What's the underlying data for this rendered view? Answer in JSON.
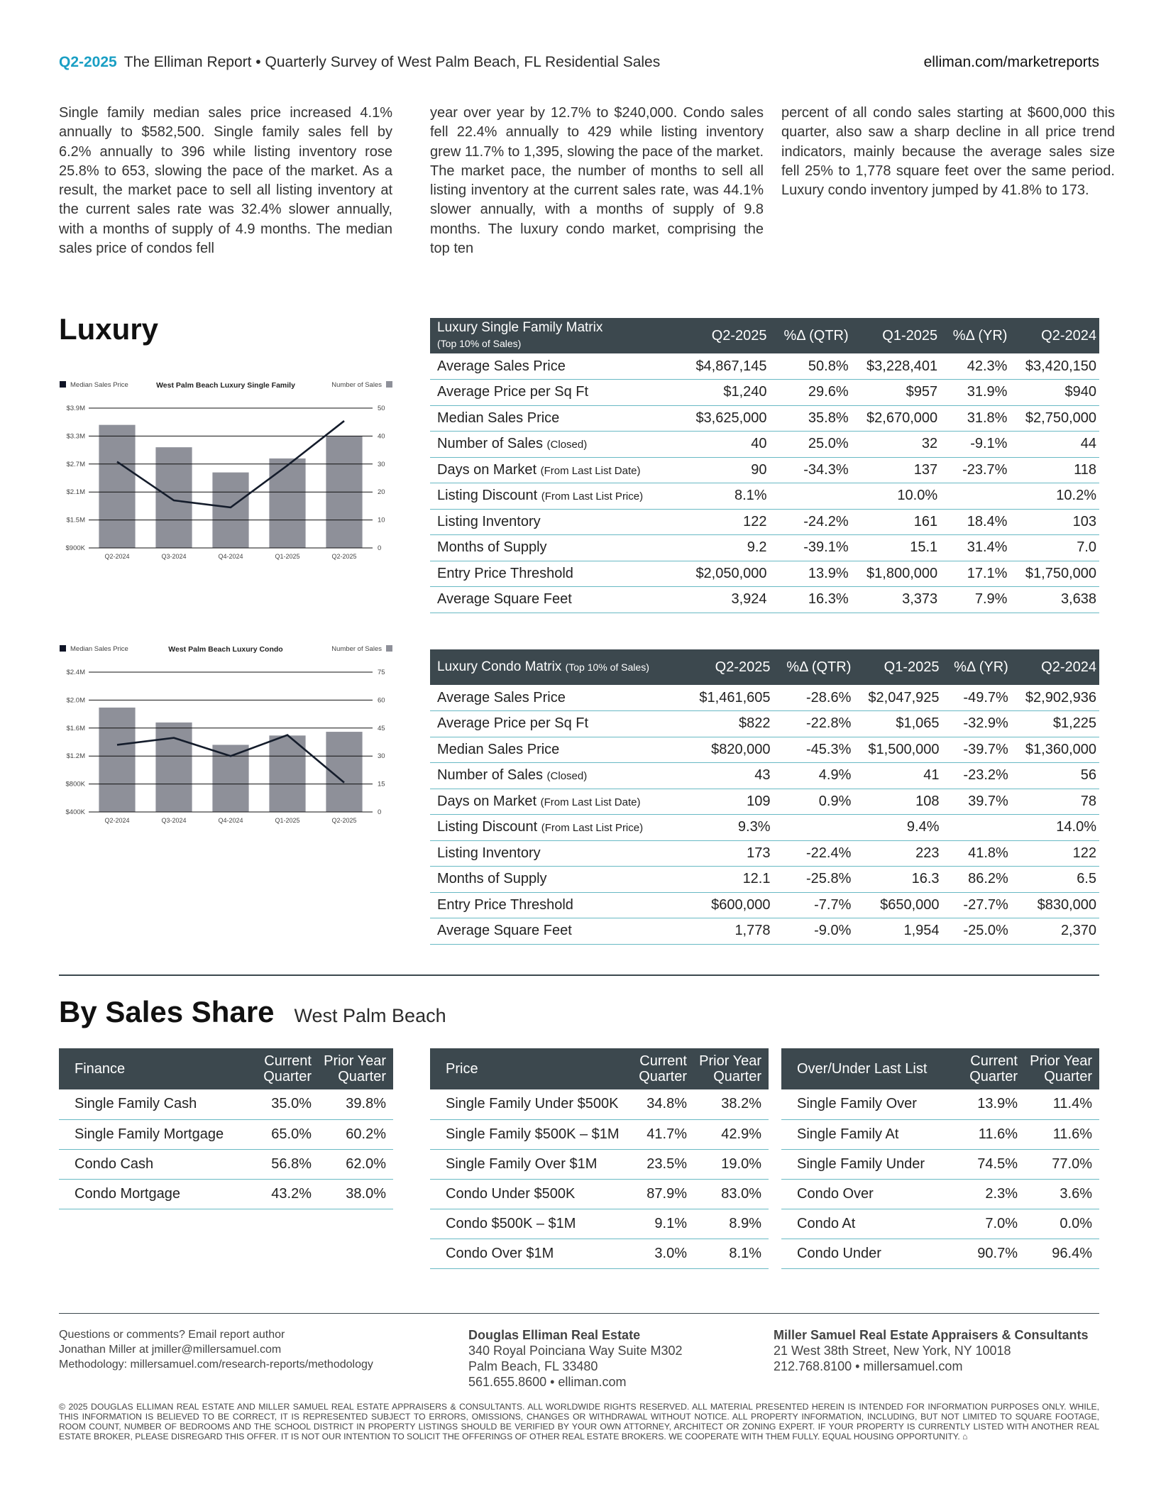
{
  "header": {
    "quarter": "Q2-2025",
    "title": "The Elliman Report • Quarterly Survey of West Palm Beach, FL Residential Sales",
    "url": "elliman.com/marketreports"
  },
  "intro": [
    "Single family median sales price increased 4.1% annually to $582,500. Single family sales fell by 6.2% annually to 396 while listing inventory rose 25.8% to 653, slowing the pace of the market. As a result, the market pace to sell all listing inventory at the current sales rate was 32.4% slower annually, with a months of supply of 4.9 months. The median sales price of condos fell",
    "year over year by 12.7% to $240,000. Condo sales fell 22.4% annually to 429 while listing inventory grew 11.7% to 1,395, slowing the pace of the market. The market pace, the number of months to sell all listing inventory at the current sales rate, was 44.1% slower annually, with a months of supply of 9.8 months. The luxury condo market, comprising the top ten",
    "percent of all condo sales starting at $600,000 this quarter, also saw a sharp decline in all price trend indicators, mainly because the average sales size fell 25% to 1,778 square feet over the same period. Luxury condo inventory jumped by 41.8% to 173."
  ],
  "luxury_heading": "Luxury",
  "matrix_cols": [
    "Q2-2025",
    "%Δ (QTR)",
    "Q1-2025",
    "%Δ (YR)",
    "Q2-2024"
  ],
  "sf_matrix": {
    "title": "Luxury Single Family Matrix",
    "subtitle": "(Top 10% of Sales)",
    "rows": [
      [
        "Average Sales Price",
        "",
        "$4,867,145",
        "50.8%",
        "$3,228,401",
        "42.3%",
        "$3,420,150"
      ],
      [
        "Average Price per Sq Ft",
        "",
        "$1,240",
        "29.6%",
        "$957",
        "31.9%",
        "$940"
      ],
      [
        "Median Sales Price",
        "",
        "$3,625,000",
        "35.8%",
        "$2,670,000",
        "31.8%",
        "$2,750,000"
      ],
      [
        "Number of Sales",
        "(Closed)",
        "40",
        "25.0%",
        "32",
        "-9.1%",
        "44"
      ],
      [
        "Days on Market",
        "(From Last List Date)",
        "90",
        "-34.3%",
        "137",
        "-23.7%",
        "118"
      ],
      [
        "Listing Discount",
        "(From Last List Price)",
        "8.1%",
        "",
        "10.0%",
        "",
        "10.2%"
      ],
      [
        "Listing Inventory",
        "",
        "122",
        "-24.2%",
        "161",
        "18.4%",
        "103"
      ],
      [
        "Months of Supply",
        "",
        "9.2",
        "-39.1%",
        "15.1",
        "31.4%",
        "7.0"
      ],
      [
        "Entry Price Threshold",
        "",
        "$2,050,000",
        "13.9%",
        "$1,800,000",
        "17.1%",
        "$1,750,000"
      ],
      [
        "Average Square Feet",
        "",
        "3,924",
        "16.3%",
        "3,373",
        "7.9%",
        "3,638"
      ]
    ]
  },
  "condo_matrix": {
    "title": "Luxury Condo Matrix",
    "subtitle": "(Top 10% of Sales)",
    "rows": [
      [
        "Average Sales Price",
        "",
        "$1,461,605",
        "-28.6%",
        "$2,047,925",
        "-49.7%",
        "$2,902,936"
      ],
      [
        "Average Price per Sq Ft",
        "",
        "$822",
        "-22.8%",
        "$1,065",
        "-32.9%",
        "$1,225"
      ],
      [
        "Median Sales Price",
        "",
        "$820,000",
        "-45.3%",
        "$1,500,000",
        "-39.7%",
        "$1,360,000"
      ],
      [
        "Number of Sales",
        "(Closed)",
        "43",
        "4.9%",
        "41",
        "-23.2%",
        "56"
      ],
      [
        "Days on Market",
        "(From Last List Date)",
        "109",
        "0.9%",
        "108",
        "39.7%",
        "78"
      ],
      [
        "Listing Discount",
        "(From Last List Price)",
        "9.3%",
        "",
        "9.4%",
        "",
        "14.0%"
      ],
      [
        "Listing Inventory",
        "",
        "173",
        "-22.4%",
        "223",
        "41.8%",
        "122"
      ],
      [
        "Months of Supply",
        "",
        "12.1",
        "-25.8%",
        "16.3",
        "86.2%",
        "6.5"
      ],
      [
        "Entry Price Threshold",
        "",
        "$600,000",
        "-7.7%",
        "$650,000",
        "-27.7%",
        "$830,000"
      ],
      [
        "Average Square Feet",
        "",
        "1,778",
        "-9.0%",
        "1,954",
        "-25.0%",
        "2,370"
      ]
    ]
  },
  "chart_data": [
    {
      "type": "bar+line",
      "title": "West Palm Beach Luxury Single Family",
      "legend_left": "Median Sales Price",
      "legend_right": "Number of Sales",
      "categories": [
        "Q2-2024",
        "Q3-2024",
        "Q4-2024",
        "Q1-2025",
        "Q2-2025"
      ],
      "left_ticks": [
        "$900K",
        "$1.5M",
        "$2.1M",
        "$2.7M",
        "$3.3M",
        "$3.9M"
      ],
      "right_ticks": [
        "0",
        "10",
        "20",
        "30",
        "40",
        "50"
      ],
      "ylim_left": [
        900000,
        3900000
      ],
      "ylim_right": [
        0,
        50
      ],
      "series": [
        {
          "name": "Number of Sales",
          "kind": "bar",
          "axis": "right",
          "values": [
            44,
            36,
            27,
            32,
            40
          ]
        },
        {
          "name": "Median Sales Price",
          "kind": "line",
          "axis": "left",
          "values": [
            2750000,
            1920000,
            1770000,
            2670000,
            3625000
          ]
        }
      ],
      "colors": {
        "bar": "#8e9099",
        "line": "#141c2b"
      }
    },
    {
      "type": "bar+line",
      "title": "West Palm Beach Luxury Condo",
      "legend_left": "Median Sales Price",
      "legend_right": "Number of Sales",
      "categories": [
        "Q2-2024",
        "Q3-2024",
        "Q4-2024",
        "Q1-2025",
        "Q2-2025"
      ],
      "left_ticks": [
        "$400K",
        "$800K",
        "$1.2M",
        "$1.6M",
        "$2.0M",
        "$2.4M"
      ],
      "right_ticks": [
        "0",
        "15",
        "30",
        "45",
        "60",
        "75"
      ],
      "ylim_left": [
        400000,
        2400000
      ],
      "ylim_right": [
        0,
        75
      ],
      "series": [
        {
          "name": "Number of Sales",
          "kind": "bar",
          "axis": "right",
          "values": [
            56,
            48,
            36,
            41,
            43
          ]
        },
        {
          "name": "Median Sales Price",
          "kind": "line",
          "axis": "left",
          "values": [
            1360000,
            1460000,
            1200000,
            1500000,
            820000
          ]
        }
      ],
      "colors": {
        "bar": "#8e9099",
        "line": "#141c2b"
      }
    }
  ],
  "share": {
    "heading": "By Sales Share",
    "subheading": "West Palm Beach",
    "cols": [
      "Current Quarter",
      "Prior Year Quarter"
    ],
    "tables": [
      {
        "title": "Finance",
        "rows": [
          [
            "Single Family Cash",
            "35.0%",
            "39.8%"
          ],
          [
            "Single Family Mortgage",
            "65.0%",
            "60.2%"
          ],
          [
            "Condo Cash",
            "56.8%",
            "62.0%"
          ],
          [
            "Condo Mortgage",
            "43.2%",
            "38.0%"
          ]
        ]
      },
      {
        "title": "Price",
        "rows": [
          [
            "Single Family Under $500K",
            "34.8%",
            "38.2%"
          ],
          [
            "Single Family $500K – $1M",
            "41.7%",
            "42.9%"
          ],
          [
            "Single Family Over $1M",
            "23.5%",
            "19.0%"
          ],
          [
            "Condo Under $500K",
            "87.9%",
            "83.0%"
          ],
          [
            "Condo $500K – $1M",
            "9.1%",
            "8.9%"
          ],
          [
            "Condo Over $1M",
            "3.0%",
            "8.1%"
          ]
        ]
      },
      {
        "title": "Over/Under Last List",
        "rows": [
          [
            "Single Family Over",
            "13.9%",
            "11.4%"
          ],
          [
            "Single Family At",
            "11.6%",
            "11.6%"
          ],
          [
            "Single Family Under",
            "74.5%",
            "77.0%"
          ],
          [
            "Condo Over",
            "2.3%",
            "3.6%"
          ],
          [
            "Condo At",
            "7.0%",
            "0.0%"
          ],
          [
            "Condo Under",
            "90.7%",
            "96.4%"
          ]
        ]
      }
    ]
  },
  "footer": {
    "contact": [
      "Questions or comments? Email report author",
      "Jonathan Miller at jmiller@millersamuel.com",
      "Methodology: millersamuel.com/research-reports/methodology"
    ],
    "de": {
      "name": "Douglas Elliman Real Estate",
      "lines": [
        "340 Royal Poinciana Way Suite M302",
        "Palm Beach, FL 33480",
        "561.655.8600 • elliman.com"
      ]
    },
    "ms": {
      "name": "Miller Samuel Real Estate Appraisers & Consultants",
      "lines": [
        "21 West 38th Street, New York, NY 10018",
        "212.768.8100 • millersamuel.com"
      ]
    },
    "legal": "© 2025 DOUGLAS ELLIMAN REAL ESTATE AND MILLER SAMUEL REAL ESTATE APPRAISERS & CONSULTANTS. ALL WORLDWIDE RIGHTS RESERVED. ALL MATERIAL PRESENTED HEREIN IS INTENDED FOR INFORMATION PURPOSES ONLY. WHILE, THIS INFORMATION IS BELIEVED TO BE CORRECT, IT IS REPRESENTED SUBJECT TO ERRORS, OMISSIONS, CHANGES OR WITHDRAWAL WITHOUT NOTICE. ALL PROPERTY INFORMATION, INCLUDING, BUT NOT LIMITED TO SQUARE FOOTAGE, ROOM COUNT, NUMBER OF BEDROOMS AND THE SCHOOL DISTRICT IN PROPERTY LISTINGS SHOULD BE VERIFIED BY YOUR OWN ATTORNEY, ARCHITECT OR ZONING EXPERT. IF YOUR PROPERTY IS CURRENTLY LISTED WITH ANOTHER REAL ESTATE BROKER, PLEASE DISREGARD THIS OFFER. IT IS NOT OUR INTENTION TO SOLICIT THE OFFERINGS OF OTHER REAL ESTATE BROKERS. WE COOPERATE WITH THEM FULLY. EQUAL HOUSING OPPORTUNITY."
  }
}
